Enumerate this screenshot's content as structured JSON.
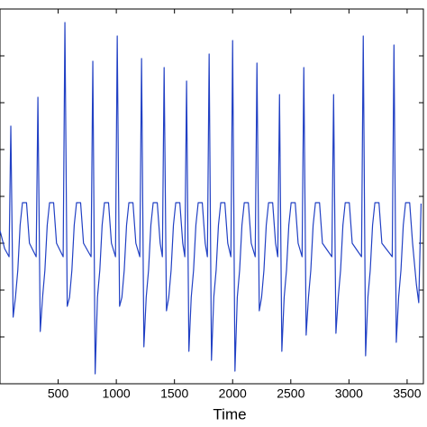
{
  "chart_data": {
    "type": "line",
    "x_label": "Time",
    "x": [
      0,
      40,
      78,
      93,
      113,
      133,
      153,
      173,
      193,
      228,
      253,
      311,
      326,
      346,
      366,
      386,
      406,
      426,
      461,
      486,
      543,
      558,
      578,
      598,
      618,
      638,
      658,
      693,
      718,
      783,
      798,
      818,
      838,
      858,
      878,
      898,
      933,
      958,
      993,
      1008,
      1028,
      1048,
      1068,
      1088,
      1108,
      1143,
      1168,
      1202,
      1217,
      1237,
      1257,
      1277,
      1297,
      1317,
      1352,
      1377,
      1396,
      1411,
      1431,
      1451,
      1471,
      1491,
      1511,
      1546,
      1571,
      1589,
      1604,
      1624,
      1644,
      1664,
      1684,
      1704,
      1739,
      1764,
      1783,
      1798,
      1818,
      1838,
      1858,
      1878,
      1898,
      1933,
      1958,
      1985,
      2000,
      2020,
      2040,
      2060,
      2080,
      2100,
      2135,
      2160,
      2194,
      2209,
      2229,
      2249,
      2269,
      2289,
      2309,
      2344,
      2369,
      2388,
      2403,
      2423,
      2443,
      2463,
      2483,
      2503,
      2538,
      2563,
      2597,
      2612,
      2632,
      2652,
      2672,
      2692,
      2712,
      2747,
      2772,
      2853,
      2868,
      2888,
      2908,
      2928,
      2948,
      2968,
      3003,
      3028,
      3108,
      3123,
      3143,
      3163,
      3183,
      3203,
      3223,
      3258,
      3283,
      3372,
      3387,
      3407,
      3427,
      3447,
      3467,
      3487,
      3522,
      3547,
      3580,
      3600,
      3620
    ],
    "series": [
      {
        "color": "#2140c4",
        "values": [
          170,
          150,
          141,
          286,
          74,
          96,
          126,
          176,
          201,
          201,
          156,
          141,
          318,
          58,
          96,
          126,
          176,
          201,
          201,
          156,
          141,
          401,
          86,
          96,
          126,
          176,
          201,
          201,
          156,
          141,
          358,
          11,
          96,
          126,
          176,
          201,
          201,
          156,
          141,
          386,
          86,
          96,
          126,
          176,
          201,
          201,
          156,
          141,
          361,
          41,
          96,
          126,
          176,
          201,
          201,
          156,
          141,
          351,
          81,
          96,
          126,
          176,
          201,
          201,
          156,
          141,
          336,
          36,
          96,
          126,
          176,
          201,
          201,
          156,
          141,
          366,
          26,
          96,
          126,
          176,
          201,
          201,
          156,
          141,
          381,
          14,
          96,
          126,
          176,
          201,
          201,
          156,
          141,
          356,
          81,
          96,
          126,
          176,
          201,
          201,
          156,
          141,
          321,
          36,
          96,
          126,
          176,
          201,
          201,
          156,
          141,
          351,
          54,
          96,
          126,
          176,
          201,
          201,
          156,
          141,
          321,
          56,
          96,
          126,
          176,
          201,
          201,
          156,
          141,
          386,
          31,
          96,
          126,
          176,
          201,
          201,
          156,
          141,
          376,
          46,
          96,
          126,
          176,
          201,
          201,
          156,
          110,
          90,
          200
        ]
      }
    ],
    "xlim": [
      0,
      3640
    ],
    "xticks": [
      500,
      1000,
      1500,
      2000,
      2500,
      3000,
      3500
    ],
    "ylim": [
      0,
      416
    ],
    "yticks": [
      52,
      104,
      156,
      208,
      260,
      312,
      364
    ]
  }
}
